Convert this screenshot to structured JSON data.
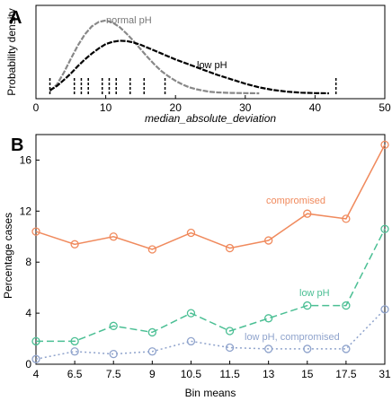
{
  "chart_data": [
    {
      "panel": "A",
      "type": "line",
      "xlabel": "median_absolute_deviation",
      "ylabel": "Probability density",
      "xlim": [
        0,
        50
      ],
      "xticks": [
        0,
        10,
        20,
        30,
        40,
        50
      ],
      "grid": false,
      "series": [
        {
          "name": "normal pH",
          "color": "#888888",
          "x": [
            2,
            3,
            4,
            5,
            6,
            7,
            8,
            9,
            10,
            11,
            12,
            13,
            14,
            15,
            16,
            17,
            18,
            19,
            20,
            21,
            22,
            23,
            24,
            25,
            26,
            28,
            30,
            32
          ],
          "y": [
            0.03,
            0.12,
            0.28,
            0.47,
            0.65,
            0.8,
            0.91,
            0.97,
            0.99,
            0.96,
            0.9,
            0.81,
            0.71,
            0.6,
            0.49,
            0.39,
            0.3,
            0.23,
            0.17,
            0.12,
            0.08,
            0.055,
            0.035,
            0.02,
            0.012,
            0.005,
            0.002,
            0.0
          ]
        },
        {
          "name": "low pH",
          "color": "#000000",
          "x": [
            2,
            3,
            4,
            5,
            6,
            7,
            8,
            9,
            10,
            11,
            12,
            13,
            14,
            15,
            16,
            17,
            18,
            19,
            20,
            22,
            24,
            26,
            28,
            30,
            32,
            34,
            36,
            38,
            40,
            42
          ],
          "y": [
            0.04,
            0.1,
            0.18,
            0.27,
            0.37,
            0.46,
            0.54,
            0.61,
            0.67,
            0.7,
            0.715,
            0.71,
            0.69,
            0.66,
            0.62,
            0.58,
            0.54,
            0.5,
            0.46,
            0.39,
            0.32,
            0.25,
            0.19,
            0.13,
            0.08,
            0.045,
            0.022,
            0.009,
            0.003,
            0.0
          ]
        }
      ],
      "rug": [
        2,
        5.5,
        6.5,
        7.5,
        9.5,
        10.5,
        11.5,
        13.5,
        15.5,
        18.5,
        43
      ],
      "annotations": [
        "normal pH",
        "low pH"
      ]
    },
    {
      "panel": "B",
      "type": "line",
      "xlabel": "Bin means",
      "ylabel": "Percentage cases",
      "categories": [
        "4",
        "6.5",
        "7.5",
        "9",
        "10.5",
        "11.5",
        "13",
        "15",
        "17.5",
        "31"
      ],
      "ylim": [
        0,
        18
      ],
      "yticks": [
        0,
        4,
        8,
        12,
        16
      ],
      "grid": false,
      "series": [
        {
          "name": "compromised",
          "color": "#f08a5d",
          "dash": "solid",
          "values": [
            10.4,
            9.4,
            10.0,
            9.0,
            10.3,
            9.1,
            9.7,
            11.8,
            11.4,
            17.2
          ]
        },
        {
          "name": "low pH",
          "color": "#4bbf94",
          "dash": "long-dash",
          "values": [
            1.8,
            1.8,
            3.0,
            2.5,
            4.0,
            2.6,
            3.6,
            4.6,
            4.6,
            10.6
          ]
        },
        {
          "name": "low pH, compromised",
          "color": "#8fa3cc",
          "dash": "dotted",
          "values": [
            0.4,
            1.0,
            0.8,
            1.0,
            1.8,
            1.3,
            1.2,
            1.2,
            1.2,
            4.3
          ]
        }
      ]
    }
  ]
}
